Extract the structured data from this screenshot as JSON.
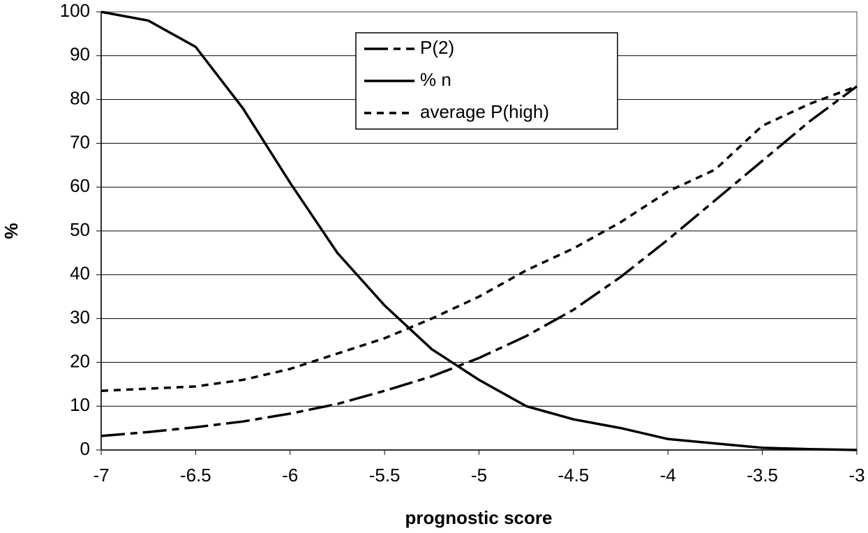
{
  "chart_data": {
    "type": "line",
    "xlabel": "prognostic score",
    "ylabel": "%",
    "x": [
      -7,
      -6.75,
      -6.5,
      -6.25,
      -6,
      -5.75,
      -5.5,
      -5.25,
      -5,
      -4.75,
      -4.5,
      -4.25,
      -4,
      -3.75,
      -3.5,
      -3.25,
      -3
    ],
    "series": [
      {
        "name": "P(2)",
        "color": "#000000",
        "style": "long-dash",
        "values": [
          3.2,
          4.1,
          5.2,
          6.5,
          8.3,
          10.5,
          13.5,
          16.8,
          21,
          26,
          32,
          39.5,
          48,
          57,
          66,
          75,
          83
        ]
      },
      {
        "name": "% n",
        "color": "#000000",
        "style": "solid",
        "values": [
          100,
          98,
          92,
          78,
          61,
          45,
          33,
          23,
          16,
          10,
          7,
          5,
          2.5,
          1.5,
          0.5,
          0.2,
          0
        ]
      },
      {
        "name": "average P(high)",
        "color": "#000000",
        "style": "short-dash",
        "values": [
          13.5,
          14,
          14.5,
          16,
          18.5,
          22,
          25.5,
          30,
          35,
          41,
          46,
          52,
          59,
          64,
          74,
          79,
          83
        ]
      }
    ],
    "xlim": [
      -7,
      -3
    ],
    "xticks": [
      -7,
      -6.5,
      -6,
      -5.5,
      -5,
      -4.5,
      -4,
      -3.5,
      -3
    ],
    "ylim": [
      0,
      100
    ],
    "yticks": [
      0,
      10,
      20,
      30,
      40,
      50,
      60,
      70,
      80,
      90,
      100
    ],
    "grid": true,
    "legend": "top-center"
  }
}
